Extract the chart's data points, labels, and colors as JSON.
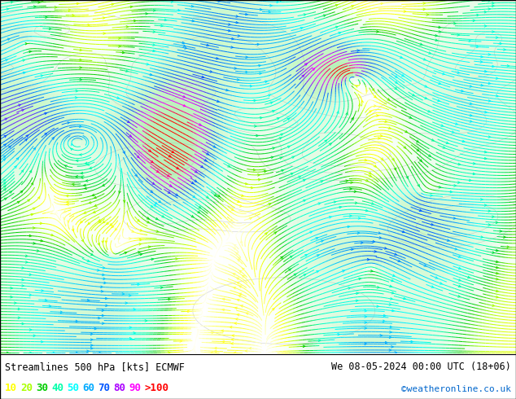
{
  "title_left": "Streamlines 500 hPa [kts] ECMWF",
  "title_right": "We 08-05-2024 00:00 UTC (18+06)",
  "copyright": "©weatheronline.co.uk",
  "legend_values": [
    "10",
    "20",
    "30",
    "40",
    "50",
    "60",
    "70",
    "80",
    "90",
    ">100"
  ],
  "legend_colors": [
    "#ffff00",
    "#aaff00",
    "#00cc00",
    "#00ffaa",
    "#00ffff",
    "#00aaff",
    "#0055ff",
    "#aa00ff",
    "#ff00ff",
    "#ff0000"
  ],
  "bg_color": "#ffffff",
  "fig_width": 6.34,
  "fig_height": 4.9,
  "dpi": 100,
  "speed_colormap": [
    [
      0.0,
      "#ffffff"
    ],
    [
      0.05,
      "#ffff99"
    ],
    [
      0.12,
      "#ffff00"
    ],
    [
      0.2,
      "#aaff00"
    ],
    [
      0.28,
      "#00cc00"
    ],
    [
      0.38,
      "#00ffaa"
    ],
    [
      0.48,
      "#00ffff"
    ],
    [
      0.58,
      "#00aaff"
    ],
    [
      0.68,
      "#0055ff"
    ],
    [
      0.78,
      "#aa00ff"
    ],
    [
      0.88,
      "#ff00ff"
    ],
    [
      1.0,
      "#ff0000"
    ]
  ]
}
